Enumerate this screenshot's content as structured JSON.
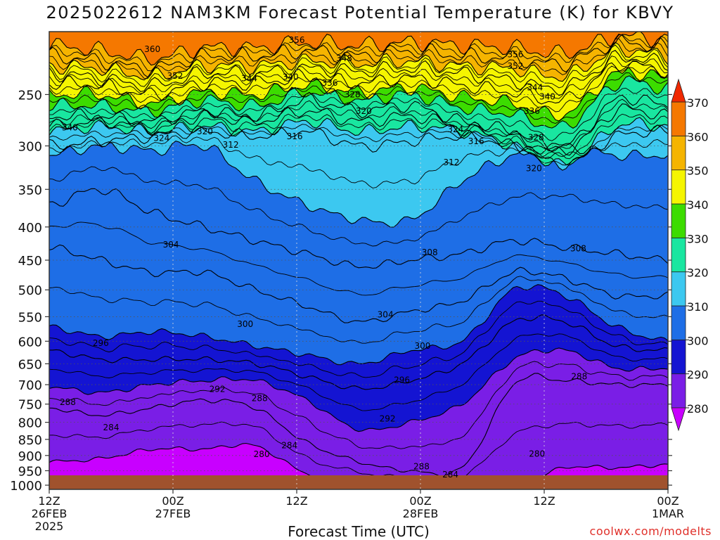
{
  "title": "2025022612 NAM3KM Forecast Potential Temperature (K) for KBVY",
  "credit": "coolwx.com/modelts",
  "chart_data": {
    "type": "heatmap",
    "title": "2025022612 NAM3KM Forecast Potential Temperature (K) for KBVY",
    "xlabel": "Forecast Time (UTC)",
    "ylabel": "",
    "x_hours_range": [
      0,
      60
    ],
    "y_pressure_range": [
      1000,
      200
    ],
    "x_ticks": [
      {
        "hour": 0,
        "label": "12Z",
        "sub": "26FEB",
        "year": "2025"
      },
      {
        "hour": 12,
        "label": "00Z",
        "sub": "27FEB"
      },
      {
        "hour": 24,
        "label": "12Z",
        "sub": ""
      },
      {
        "hour": 36,
        "label": "00Z",
        "sub": "28FEB"
      },
      {
        "hour": 48,
        "label": "12Z",
        "sub": ""
      },
      {
        "hour": 60,
        "label": "00Z",
        "sub": "1MAR"
      }
    ],
    "y_ticks": [
      250,
      300,
      350,
      400,
      450,
      500,
      550,
      600,
      650,
      700,
      750,
      800,
      850,
      900,
      950,
      1000
    ],
    "colorbar": {
      "labels": [
        "280",
        "290",
        "300",
        "310",
        "320",
        "330",
        "340",
        "350",
        "360",
        "370"
      ],
      "colors": [
        "#c800ff",
        "#7a1ee6",
        "#1414d2",
        "#1e6ee6",
        "#3cc8f0",
        "#19e6a0",
        "#3cdc00",
        "#f5f500",
        "#f5b400",
        "#f57800",
        "#f02800"
      ]
    },
    "levels": [
      280,
      290,
      300,
      310,
      320,
      330,
      340,
      350,
      360,
      370
    ],
    "isotherm_key_pressures": [
      {
        "theta": 284,
        "p": [
          920,
          910,
          880,
          880,
          870,
          960,
          990,
          1000,
          1000,
          1000,
          940,
          940,
          930
        ]
      },
      {
        "theta": 288,
        "p": [
          760,
          780,
          760,
          740,
          760,
          860,
          920,
          950,
          940,
          700,
          690,
          700,
          700
        ]
      },
      {
        "theta": 292,
        "p": [
          705,
          720,
          700,
          690,
          690,
          740,
          820,
          800,
          750,
          640,
          620,
          660,
          660
        ]
      },
      {
        "theta": 296,
        "p": [
          620,
          640,
          640,
          640,
          650,
          680,
          710,
          690,
          650,
          560,
          560,
          610,
          620
        ]
      },
      {
        "theta": 300,
        "p": [
          570,
          590,
          580,
          590,
          610,
          630,
          650,
          620,
          600,
          500,
          510,
          570,
          600
        ]
      },
      {
        "theta": 304,
        "p": [
          430,
          450,
          470,
          470,
          500,
          530,
          560,
          540,
          520,
          470,
          480,
          510,
          510
        ]
      },
      {
        "theta": 308,
        "p": [
          370,
          350,
          380,
          400,
          420,
          440,
          460,
          450,
          440,
          420,
          430,
          440,
          450
        ]
      },
      {
        "theta": 312,
        "p": [
          310,
          300,
          305,
          300,
          340,
          370,
          390,
          390,
          340,
          310,
          300,
          310,
          310
        ]
      },
      {
        "theta": 316,
        "p": [
          300,
          295,
          290,
          285,
          290,
          285,
          300,
          295,
          290,
          300,
          320,
          290,
          285
        ]
      },
      {
        "theta": 320,
        "p": [
          285,
          280,
          285,
          280,
          285,
          275,
          285,
          280,
          285,
          300,
          320,
          280,
          280
        ]
      },
      {
        "theta": 324,
        "p": [
          280,
          275,
          280,
          270,
          275,
          265,
          275,
          270,
          280,
          290,
          305,
          265,
          270
        ]
      },
      {
        "theta": 328,
        "p": [
          270,
          270,
          275,
          265,
          270,
          255,
          265,
          260,
          275,
          285,
          300,
          255,
          260
        ]
      },
      {
        "theta": 336,
        "p": [
          260,
          260,
          265,
          255,
          260,
          248,
          255,
          250,
          262,
          268,
          280,
          240,
          245
        ]
      },
      {
        "theta": 340,
        "p": [
          250,
          250,
          258,
          248,
          250,
          242,
          248,
          244,
          252,
          258,
          268,
          232,
          236
        ]
      },
      {
        "theta": 344,
        "p": [
          240,
          242,
          250,
          240,
          240,
          235,
          240,
          236,
          242,
          248,
          255,
          226,
          230
        ]
      },
      {
        "theta": 348,
        "p": [
          232,
          236,
          242,
          232,
          232,
          228,
          230,
          228,
          232,
          238,
          244,
          220,
          224
        ]
      },
      {
        "theta": 352,
        "p": [
          226,
          228,
          234,
          226,
          226,
          222,
          224,
          222,
          226,
          228,
          234,
          214,
          218
        ]
      },
      {
        "theta": 356,
        "p": [
          218,
          222,
          228,
          218,
          218,
          214,
          218,
          214,
          218,
          220,
          224,
          208,
          212
        ]
      },
      {
        "theta": 360,
        "p": [
          210,
          214,
          220,
          212,
          212,
          208,
          210,
          208,
          210,
          212,
          216,
          204,
          206
        ]
      }
    ],
    "contour_labels": [
      {
        "text": "360",
        "h": 10.0,
        "p": 213
      },
      {
        "text": "356",
        "h": 24.0,
        "p": 206
      },
      {
        "text": "348",
        "h": 28.6,
        "p": 220
      },
      {
        "text": "356",
        "h": 45.2,
        "p": 217
      },
      {
        "text": "352",
        "h": 45.2,
        "p": 226
      },
      {
        "text": "352",
        "h": 12.2,
        "p": 234
      },
      {
        "text": "344",
        "h": 19.4,
        "p": 236
      },
      {
        "text": "340",
        "h": 23.4,
        "p": 235
      },
      {
        "text": "336",
        "h": 27.2,
        "p": 240
      },
      {
        "text": "344",
        "h": 47.1,
        "p": 244
      },
      {
        "text": "340",
        "h": 48.3,
        "p": 252
      },
      {
        "text": "328",
        "h": 29.4,
        "p": 250
      },
      {
        "text": "320",
        "h": 30.5,
        "p": 265
      },
      {
        "text": "336",
        "h": 46.8,
        "p": 265
      },
      {
        "text": "340",
        "h": 2.0,
        "p": 281
      },
      {
        "text": "320",
        "h": 15.1,
        "p": 285
      },
      {
        "text": "324",
        "h": 39.4,
        "p": 283
      },
      {
        "text": "328",
        "h": 47.2,
        "p": 291
      },
      {
        "text": "324",
        "h": 10.9,
        "p": 292
      },
      {
        "text": "312",
        "h": 17.6,
        "p": 299
      },
      {
        "text": "316",
        "h": 23.8,
        "p": 290
      },
      {
        "text": "316",
        "h": 41.4,
        "p": 295
      },
      {
        "text": "312",
        "h": 39.0,
        "p": 318
      },
      {
        "text": "320",
        "h": 47.0,
        "p": 325
      },
      {
        "text": "304",
        "h": 11.8,
        "p": 426
      },
      {
        "text": "308",
        "h": 36.9,
        "p": 438
      },
      {
        "text": "308",
        "h": 51.3,
        "p": 432
      },
      {
        "text": "304",
        "h": 32.6,
        "p": 546
      },
      {
        "text": "300",
        "h": 19.0,
        "p": 565
      },
      {
        "text": "296",
        "h": 5.0,
        "p": 604
      },
      {
        "text": "300",
        "h": 36.2,
        "p": 610
      },
      {
        "text": "288",
        "h": 51.4,
        "p": 680
      },
      {
        "text": "296",
        "h": 34.2,
        "p": 689
      },
      {
        "text": "292",
        "h": 16.3,
        "p": 711
      },
      {
        "text": "288",
        "h": 1.8,
        "p": 745
      },
      {
        "text": "288",
        "h": 20.4,
        "p": 735
      },
      {
        "text": "292",
        "h": 32.8,
        "p": 790
      },
      {
        "text": "284",
        "h": 6.0,
        "p": 815
      },
      {
        "text": "284",
        "h": 23.3,
        "p": 868
      },
      {
        "text": "280",
        "h": 20.6,
        "p": 896
      },
      {
        "text": "280",
        "h": 47.3,
        "p": 895
      },
      {
        "text": "288",
        "h": 36.1,
        "p": 936
      },
      {
        "text": "284",
        "h": 38.9,
        "p": 963
      }
    ]
  }
}
